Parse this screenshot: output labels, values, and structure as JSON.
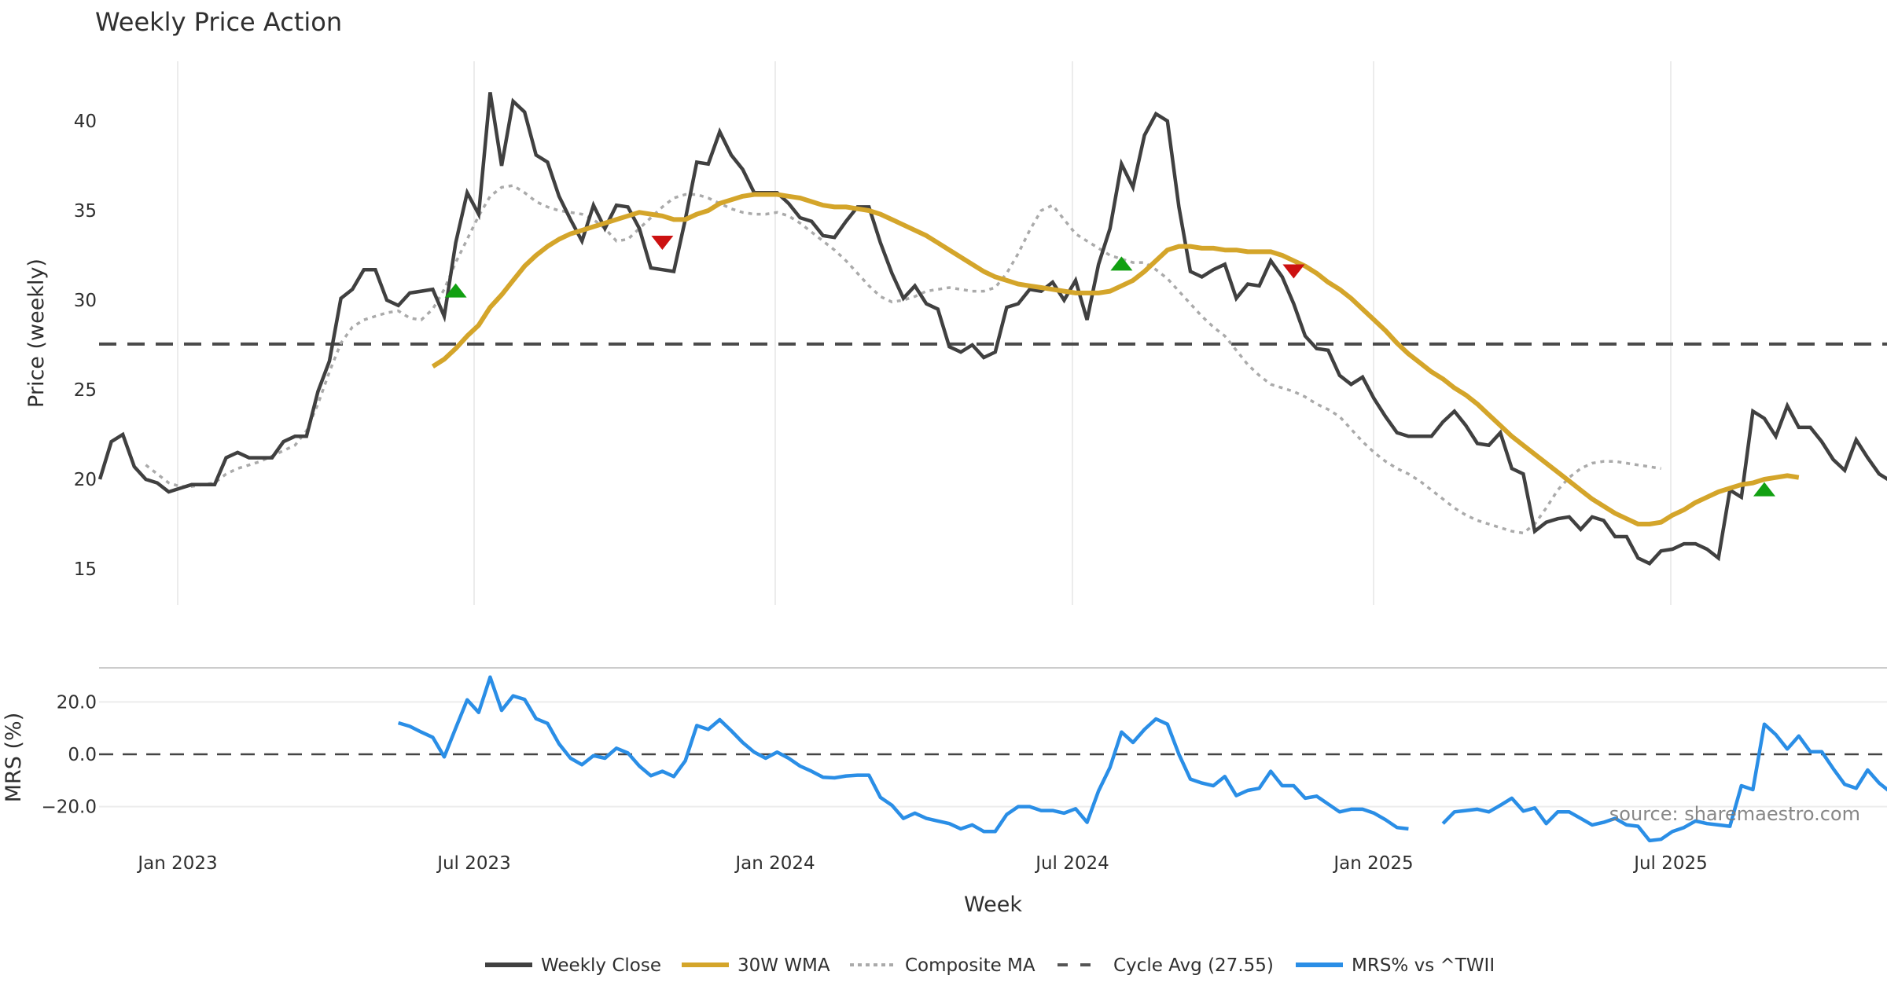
{
  "chart_data": {
    "type": "line",
    "title": "Weekly Price Action",
    "xlabel": "Week",
    "source": "source: sharemaestro.com",
    "x_start": "2022-11-14",
    "x_step": "1 week",
    "x_tick_labels": [
      "Jan 2023",
      "Jul 2023",
      "Jan 2024",
      "Jul 2024",
      "Jan 2025",
      "Jul 2025"
    ],
    "grid": true,
    "legend_position": "bottom-center",
    "panels": [
      {
        "name": "price",
        "ylabel": "Price (weekly)",
        "ylim": [
          13.8,
          43
        ],
        "y_ticks": [
          15,
          20,
          25,
          30,
          35,
          40
        ],
        "y_tick_labels": [
          "15",
          "20",
          "25",
          "30",
          "35",
          "40"
        ],
        "series": [
          {
            "name": "Weekly Close",
            "color": "#404040",
            "values": [
              20.0,
              22.1,
              22.5,
              20.7,
              20.0,
              19.8,
              19.3,
              19.5,
              19.7,
              19.7,
              19.7,
              21.2,
              21.5,
              21.2,
              21.2,
              21.2,
              22.1,
              22.4,
              22.4,
              24.9,
              26.6,
              30.1,
              30.6,
              31.7,
              31.7,
              30.0,
              29.7,
              30.4,
              30.5,
              30.6,
              29.1,
              33.2,
              36.0,
              34.8,
              41.6,
              37.5,
              41.1,
              40.5,
              38.1,
              37.7,
              35.8,
              34.5,
              33.3,
              35.3,
              34.0,
              35.3,
              35.2,
              34.0,
              31.8,
              31.7,
              31.6,
              34.5,
              37.7,
              37.6,
              39.4,
              38.1,
              37.3,
              36.0,
              36.0,
              36.0,
              35.4,
              34.6,
              34.4,
              33.6,
              33.5,
              34.4,
              35.2,
              35.2,
              33.2,
              31.5,
              30.1,
              30.8,
              29.8,
              29.5,
              27.4,
              27.1,
              27.5,
              26.8,
              27.1,
              29.6,
              29.8,
              30.6,
              30.5,
              31.0,
              30.0,
              31.1,
              28.9,
              32.0,
              34.0,
              37.6,
              36.3,
              39.2,
              40.4,
              40.0,
              35.2,
              31.6,
              31.3,
              31.7,
              32.0,
              30.1,
              30.9,
              30.8,
              32.2,
              31.3,
              29.8,
              28.0,
              27.3,
              27.2,
              25.8,
              25.3,
              25.7,
              24.5,
              23.5,
              22.6,
              22.4,
              22.4,
              22.4,
              23.2,
              23.8,
              23.0,
              22.0,
              21.9,
              22.6,
              20.6,
              20.3,
              17.1,
              17.6,
              17.8,
              17.9,
              17.2,
              17.9,
              17.7,
              16.8,
              16.8,
              15.6,
              15.3,
              16.0,
              16.1,
              16.4,
              16.4,
              16.1,
              15.6,
              19.4,
              19.0,
              23.8,
              23.4,
              22.4,
              24.1,
              22.9,
              22.9,
              22.1,
              21.1,
              20.5,
              22.2,
              21.2,
              20.3,
              19.9
            ]
          },
          {
            "name": "30W WMA",
            "color": "#d4a52a",
            "start_index": 29,
            "values": [
              26.3,
              26.7,
              27.3,
              28.0,
              28.6,
              29.6,
              30.3,
              31.1,
              31.9,
              32.5,
              33.0,
              33.4,
              33.7,
              33.9,
              34.1,
              34.3,
              34.5,
              34.7,
              34.9,
              34.8,
              34.7,
              34.5,
              34.5,
              34.8,
              35.0,
              35.4,
              35.6,
              35.8,
              35.9,
              35.9,
              35.9,
              35.8,
              35.7,
              35.5,
              35.3,
              35.2,
              35.2,
              35.1,
              35.0,
              34.8,
              34.5,
              34.2,
              33.9,
              33.6,
              33.2,
              32.8,
              32.4,
              32.0,
              31.6,
              31.3,
              31.1,
              30.9,
              30.8,
              30.7,
              30.6,
              30.5,
              30.4,
              30.4,
              30.4,
              30.5,
              30.8,
              31.1,
              31.6,
              32.2,
              32.8,
              33.0,
              33.0,
              32.9,
              32.9,
              32.8,
              32.8,
              32.7,
              32.7,
              32.7,
              32.5,
              32.2,
              31.9,
              31.5,
              31.0,
              30.6,
              30.1,
              29.5,
              28.9,
              28.3,
              27.6,
              27.0,
              26.5,
              26.0,
              25.6,
              25.1,
              24.7,
              24.2,
              23.6,
              23.0,
              22.4,
              21.9,
              21.4,
              20.9,
              20.4,
              19.9,
              19.4,
              18.9,
              18.5,
              18.1,
              17.8,
              17.5,
              17.5,
              17.6,
              18.0,
              18.3,
              18.7,
              19.0,
              19.3,
              19.5,
              19.7,
              19.8,
              20.0,
              20.1,
              20.2,
              20.1
            ]
          },
          {
            "name": "Composite MA",
            "color": "#aaaaaa",
            "start_index": 4,
            "values": [
              20.8,
              20.3,
              19.8,
              19.6,
              19.6,
              19.7,
              19.8,
              20.3,
              20.6,
              20.8,
              21.0,
              21.3,
              21.6,
              21.9,
              22.7,
              24.2,
              26.0,
              27.6,
              28.5,
              28.9,
              29.1,
              29.3,
              29.4,
              29.0,
              28.9,
              29.5,
              30.6,
              32.1,
              33.4,
              34.7,
              35.8,
              36.3,
              36.4,
              36.0,
              35.5,
              35.2,
              35.0,
              34.9,
              34.8,
              34.5,
              34.0,
              33.3,
              33.4,
              34.0,
              34.6,
              35.2,
              35.7,
              35.9,
              35.9,
              35.7,
              35.4,
              35.1,
              34.9,
              34.8,
              34.8,
              34.9,
              34.7,
              34.3,
              33.8,
              33.3,
              32.8,
              32.2,
              31.5,
              30.8,
              30.2,
              29.9,
              30.0,
              30.2,
              30.5,
              30.6,
              30.7,
              30.6,
              30.5,
              30.5,
              30.7,
              31.5,
              32.6,
              33.9,
              35.0,
              35.3,
              34.5,
              33.7,
              33.3,
              32.9,
              32.5,
              32.3,
              32.1,
              32.1,
              31.7,
              31.2,
              30.5,
              29.8,
              29.1,
              28.5,
              28.0,
              27.2,
              26.4,
              25.8,
              25.3,
              25.1,
              24.9,
              24.6,
              24.2,
              23.9,
              23.5,
              22.8,
              22.1,
              21.5,
              21.0,
              20.6,
              20.3,
              19.9,
              19.4,
              18.9,
              18.4,
              18.0,
              17.7,
              17.5,
              17.3,
              17.1,
              17.0,
              17.5,
              18.4,
              19.4,
              20.1,
              20.6,
              20.9,
              21.0,
              21.0,
              20.9,
              20.8,
              20.7,
              20.6
            ]
          },
          {
            "name": "Cycle Avg (27.55)",
            "color": "#4a4a4a",
            "value": 27.55
          }
        ],
        "signals": [
          {
            "type": "buy",
            "index": 31,
            "value": 30.5,
            "color": "#12a012"
          },
          {
            "type": "sell",
            "index": 49,
            "value": 33.2,
            "color": "#cc1111"
          },
          {
            "type": "buy",
            "index": 89,
            "value": 32.0,
            "color": "#12a012"
          },
          {
            "type": "sell",
            "index": 104,
            "value": 31.6,
            "color": "#cc1111"
          },
          {
            "type": "buy",
            "index": 145,
            "value": 19.4,
            "color": "#12a012"
          }
        ]
      },
      {
        "name": "mrs",
        "ylabel": "MRS (%)",
        "ylim": [
          -36,
          34
        ],
        "y_ticks": [
          -20,
          0,
          20
        ],
        "y_tick_labels": [
          "−20.0",
          "0.0",
          "20.0"
        ],
        "zero_line": 0,
        "series": [
          {
            "name": "MRS% vs ^TWII",
            "color": "#2a8ee6",
            "start_index": 26,
            "segments": [
              [
                12.0,
                10.7,
                8.5,
                6.5,
                -1.0,
                10.0,
                20.8,
                16.0,
                29.5,
                16.8,
                22.3,
                21.0,
                13.6,
                11.8,
                4.0,
                -1.5,
                -4.0,
                -0.5,
                -1.5,
                2.3,
                0.5,
                -4.5,
                -8.2,
                -6.5,
                -8.5,
                -2.5,
                11.0,
                9.5,
                13.2,
                9.0,
                4.5,
                0.8,
                -1.5,
                0.8,
                -1.5,
                -4.5,
                -6.5,
                -8.8,
                -9.0,
                -8.3,
                -8.0,
                -8.0,
                -16.5,
                -19.5,
                -24.5,
                -22.5,
                -24.5,
                -25.5,
                -26.5,
                -28.5,
                -27.0,
                -29.5,
                -29.5,
                -23.0,
                -20.0,
                -20.0,
                -21.5,
                -21.5,
                -22.5,
                -20.8,
                -26.0,
                -14.0,
                -5.0,
                8.5,
                4.5,
                9.5,
                13.5,
                11.5,
                0.0,
                -9.5,
                -11.0,
                -12.0,
                -8.5,
                -15.8,
                -13.8,
                -13.0,
                -6.5,
                -12.0,
                -12.0,
                -16.8,
                -16.0,
                -19.0,
                -22.0,
                -21.0,
                -21.0,
                -22.5,
                -25.0,
                -28.0,
                -28.5
              ],
              [
                -26.5,
                -22.0,
                -21.5,
                -21.0,
                -22.0,
                -19.5,
                -16.8,
                -21.7,
                -20.5,
                -26.5,
                -22.0,
                -22.0,
                -24.5,
                -27.0,
                -26.0,
                -24.5,
                -27.0,
                -27.5,
                -33.0,
                -32.5,
                -29.5,
                -28.0,
                -25.5,
                -26.5,
                -27.0,
                -27.5,
                -12.0,
                -13.5,
                11.5,
                7.5,
                2.0,
                7.0,
                1.0,
                1.0,
                -5.5,
                -11.5,
                -13.0,
                -6.0,
                -11.0,
                -14.5,
                -14.5
              ]
            ],
            "gap_after_index": 115
          }
        ]
      }
    ],
    "legend": [
      "Weekly Close",
      "30W WMA",
      "Composite MA",
      "Cycle Avg (27.55)",
      "MRS% vs ^TWII"
    ]
  }
}
